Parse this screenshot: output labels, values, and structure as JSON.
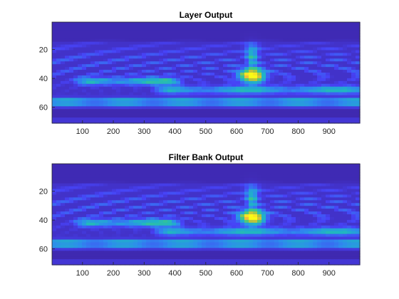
{
  "figure": {
    "colormap": [
      "#3e26a8",
      "#4743f7",
      "#2d8ced",
      "#1fb6c3",
      "#40c981",
      "#b5c43a",
      "#fbbb3a",
      "#f9fb15"
    ],
    "background_color": "#ffffff"
  },
  "chart_data": [
    {
      "type": "heatmap",
      "title": "Layer Output",
      "xlabel": "",
      "ylabel": "",
      "xlim": [
        1,
        1000
      ],
      "ylim": [
        71,
        1
      ],
      "y_direction": "reversed",
      "xticks": [
        100,
        200,
        300,
        400,
        500,
        600,
        700,
        800,
        900
      ],
      "yticks": [
        20,
        40,
        60
      ],
      "grid": false,
      "colormap": "parula",
      "features": [
        {
          "kind": "peak",
          "x": 650,
          "y": 38,
          "intensity": 1.0
        },
        {
          "kind": "ridge",
          "x_range": [
            120,
            380
          ],
          "y": 42,
          "intensity": 0.45
        },
        {
          "kind": "ridge",
          "x_range": [
            380,
            1000
          ],
          "y": 48,
          "intensity": 0.4
        },
        {
          "kind": "band",
          "y": 55,
          "intensity": 0.35
        },
        {
          "kind": "band",
          "y": 58,
          "intensity": 0.3
        },
        {
          "kind": "dark-band",
          "y": 62,
          "intensity": 0.05
        },
        {
          "kind": "dark-band",
          "y": 65,
          "intensity": 0.0
        }
      ]
    },
    {
      "type": "heatmap",
      "title": "Filter Bank Output",
      "xlabel": "",
      "ylabel": "",
      "xlim": [
        1,
        1000
      ],
      "ylim": [
        71,
        1
      ],
      "y_direction": "reversed",
      "xticks": [
        100,
        200,
        300,
        400,
        500,
        600,
        700,
        800,
        900
      ],
      "yticks": [
        20,
        40,
        60
      ],
      "grid": false,
      "colormap": "parula",
      "features": [
        {
          "kind": "peak",
          "x": 650,
          "y": 38,
          "intensity": 1.0
        },
        {
          "kind": "ridge",
          "x_range": [
            120,
            380
          ],
          "y": 42,
          "intensity": 0.45
        },
        {
          "kind": "ridge",
          "x_range": [
            380,
            1000
          ],
          "y": 48,
          "intensity": 0.4
        },
        {
          "kind": "band",
          "y": 55,
          "intensity": 0.35
        },
        {
          "kind": "band",
          "y": 58,
          "intensity": 0.3
        },
        {
          "kind": "dark-band",
          "y": 62,
          "intensity": 0.05
        },
        {
          "kind": "dark-band",
          "y": 65,
          "intensity": 0.0
        }
      ]
    }
  ]
}
